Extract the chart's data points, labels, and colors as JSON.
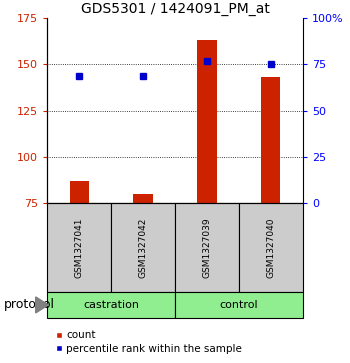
{
  "title": "GDS5301 / 1424091_PM_at",
  "samples": [
    "GSM1327041",
    "GSM1327042",
    "GSM1327039",
    "GSM1327040"
  ],
  "bar_values": [
    87,
    80,
    163,
    143
  ],
  "percentile_values": [
    69,
    69,
    77,
    75
  ],
  "bar_color": "#CC2200",
  "dot_color": "#0000CC",
  "ylim_left": [
    75,
    175
  ],
  "ylim_right": [
    0,
    100
  ],
  "yticks_left": [
    75,
    100,
    125,
    150,
    175
  ],
  "yticks_right": [
    0,
    25,
    50,
    75,
    100
  ],
  "ytick_labels_right": [
    "0",
    "25",
    "50",
    "75",
    "100%"
  ],
  "grid_values": [
    100,
    125,
    150
  ],
  "legend_count_label": "count",
  "legend_percentile_label": "percentile rank within the sample",
  "protocol_label": "protocol",
  "background_color": "#ffffff",
  "sample_box_color": "#cccccc",
  "group_box_color": "#90EE90",
  "title_fontsize": 10,
  "tick_fontsize": 8,
  "sample_fontsize": 6.5,
  "group_fontsize": 8,
  "legend_fontsize": 7.5,
  "protocol_fontsize": 9
}
